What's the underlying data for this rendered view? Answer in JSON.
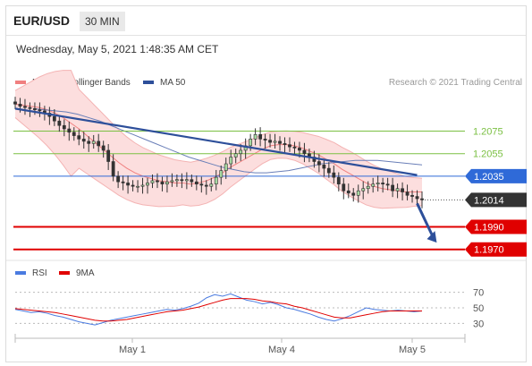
{
  "header": {
    "pair": "EUR/USD",
    "timeframe": "30 MIN"
  },
  "datetime": "Wednesday, May 5, 2021 1:48:35 AM CET",
  "legend": {
    "bollinger": {
      "label": "MA 20 + Bollinger Bands",
      "color": "#f08080"
    },
    "ma50": {
      "label": "MA 50",
      "color": "#2d4f9a"
    },
    "rsi": {
      "label": "RSI",
      "color": "#4a7be0"
    },
    "ma9": {
      "label": "9MA",
      "color": "#e00000"
    }
  },
  "credit": "Research © 2021 Trading Central",
  "colors": {
    "up_candle": "#a7d9a2",
    "down_candle": "#333333",
    "trend": "#2d4f9a",
    "support": "#e00000",
    "resistance": "#7bc043",
    "current": "#333333",
    "pivot": "#2f6ad8"
  },
  "chart_data": [
    {
      "type": "candlestick",
      "x_ticks": [
        "May 1",
        "May 4",
        "May 5"
      ],
      "ylim": [
        1.1965,
        1.2108
      ],
      "series_close": [
        1.2099,
        1.2097,
        1.2096,
        1.2095,
        1.2094,
        1.2093,
        1.2091,
        1.2088,
        1.2084,
        1.208,
        1.2077,
        1.2074,
        1.2071,
        1.2068,
        1.2066,
        1.2064,
        1.2066,
        1.2062,
        1.2058,
        1.2048,
        1.2035,
        1.203,
        1.2029,
        1.2027,
        1.2026,
        1.2026,
        1.2027,
        1.2029,
        1.2031,
        1.203,
        1.2028,
        1.203,
        1.2031,
        1.2032,
        1.2031,
        1.2032,
        1.203,
        1.2028,
        1.2027,
        1.2026,
        1.2028,
        1.2034,
        1.204,
        1.2046,
        1.2052,
        1.2055,
        1.2058,
        1.2062,
        1.2068,
        1.2072,
        1.2068,
        1.2067,
        1.2065,
        1.2066,
        1.2064,
        1.2063,
        1.2061,
        1.206,
        1.2058,
        1.2055,
        1.2052,
        1.2048,
        1.2045,
        1.2042,
        1.2038,
        1.2034,
        1.2028,
        1.2022,
        1.202,
        1.2018,
        1.2022,
        1.2024,
        1.2026,
        1.2028,
        1.2029,
        1.2028,
        1.2027,
        1.2022,
        1.2024,
        1.2021,
        1.2018,
        1.2017,
        1.2015,
        1.2014
      ],
      "ma20_values": [
        1.2099,
        1.2098,
        1.2097,
        1.2096,
        1.2094,
        1.2091,
        1.2087,
        1.2082,
        1.2077,
        1.2071,
        1.2065,
        1.2059,
        1.2053,
        1.2047,
        1.2042,
        1.2038,
        1.2035,
        1.2033,
        1.2031,
        1.203,
        1.2029,
        1.2029,
        1.2028,
        1.2029,
        1.2031,
        1.2034,
        1.2038,
        1.2043,
        1.2047,
        1.2051,
        1.2055,
        1.2059,
        1.2062,
        1.2063,
        1.2063,
        1.2062,
        1.206,
        1.2057,
        1.2054,
        1.205,
        1.2046,
        1.2041,
        1.2037,
        1.2033,
        1.2029,
        1.2026,
        1.2024,
        1.2023,
        1.2022,
        1.2021,
        1.2021,
        1.2021
      ],
      "ma50_values": [
        1.2095,
        1.2094,
        1.2093,
        1.2092,
        1.209,
        1.2087,
        1.2084,
        1.208,
        1.2076,
        1.2072,
        1.2068,
        1.2064,
        1.206,
        1.2056,
        1.2052,
        1.2049,
        1.2046,
        1.2043,
        1.2041,
        1.2039,
        1.2038,
        1.2038,
        1.2039,
        1.204,
        1.2042,
        1.2044,
        1.2046,
        1.2047,
        1.2048,
        1.2049,
        1.2049,
        1.2049,
        1.2048,
        1.2047,
        1.2046,
        1.2045
      ],
      "trendline": [
        [
          0,
          1.2095
        ],
        [
          82,
          1.2036
        ]
      ],
      "levels": [
        {
          "value": 1.2075,
          "label": "1.2075",
          "kind": "resistance"
        },
        {
          "value": 1.2055,
          "label": "1.2055",
          "kind": "resistance"
        },
        {
          "value": 1.2035,
          "label": "1.2035",
          "kind": "pivot"
        },
        {
          "value": 1.2014,
          "label": "1.2014",
          "kind": "current"
        },
        {
          "value": 1.199,
          "label": "1.1990",
          "kind": "support"
        },
        {
          "value": 1.197,
          "label": "1.1970",
          "kind": "support"
        }
      ],
      "projection": [
        [
          82,
          1.2014
        ],
        [
          86,
          1.1976
        ]
      ]
    },
    {
      "type": "line",
      "ylim": [
        20,
        80
      ],
      "y_ticks": [
        "70",
        "50",
        "30"
      ],
      "y_tick_values": [
        70,
        50,
        30
      ],
      "series": [
        {
          "name": "RSI",
          "values": [
            48,
            46,
            44,
            45,
            43,
            40,
            38,
            35,
            32,
            30,
            28,
            31,
            34,
            36,
            38,
            40,
            42,
            44,
            46,
            48,
            47,
            49,
            52,
            56,
            63,
            67,
            65,
            68,
            64,
            60,
            58,
            55,
            57,
            54,
            50,
            48,
            45,
            42,
            38,
            35,
            33,
            36,
            40,
            45,
            50,
            48,
            47,
            46,
            47,
            46,
            45,
            46
          ]
        },
        {
          "name": "9MA",
          "values": [
            49,
            48,
            47,
            46,
            45,
            44,
            42,
            40,
            38,
            36,
            34,
            33,
            33,
            34,
            35,
            37,
            39,
            41,
            43,
            45,
            46,
            47,
            49,
            51,
            54,
            57,
            60,
            62,
            62,
            62,
            61,
            59,
            58,
            56,
            55,
            52,
            50,
            47,
            44,
            41,
            38,
            37,
            37,
            39,
            41,
            43,
            45,
            46,
            46,
            46,
            46,
            46
          ]
        }
      ]
    }
  ]
}
